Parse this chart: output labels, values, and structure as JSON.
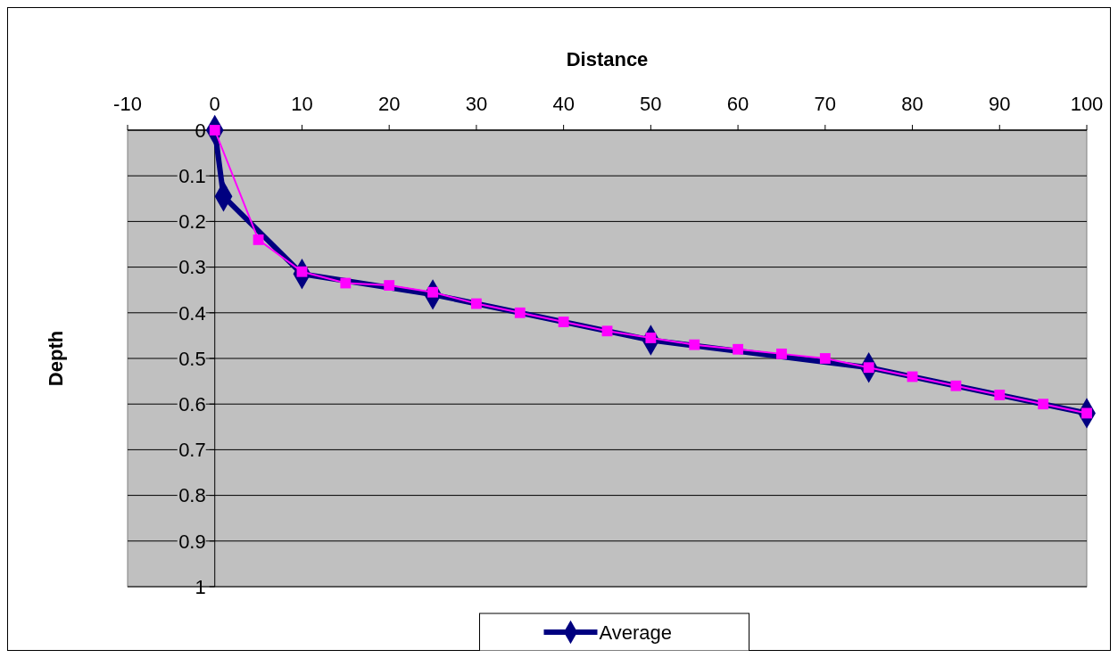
{
  "chart_data": {
    "type": "line",
    "xlabel": "Distance",
    "ylabel": "Depth",
    "xlim": [
      -10,
      100
    ],
    "xticks": [
      -10,
      0,
      10,
      20,
      30,
      40,
      50,
      60,
      70,
      80,
      90,
      100
    ],
    "ylim": [
      1,
      0
    ],
    "yticks": [
      0,
      0.1,
      0.2,
      0.3,
      0.4,
      0.5,
      0.6,
      0.7,
      0.8,
      0.9,
      1
    ],
    "grid": "y",
    "legend": "bottom",
    "series": [
      {
        "name": "Average",
        "color": "#000080",
        "marker": "diamond",
        "x": [
          0,
          1,
          10,
          25,
          50,
          75,
          100
        ],
        "values": [
          0,
          0.145,
          0.315,
          0.36,
          0.46,
          0.52,
          0.62
        ]
      },
      {
        "color": "#ff00ff",
        "marker": "square",
        "x": [
          0,
          5,
          10,
          15,
          20,
          25,
          30,
          35,
          40,
          45,
          50,
          55,
          60,
          65,
          70,
          75,
          80,
          85,
          90,
          95,
          100
        ],
        "values": [
          0,
          0.24,
          0.31,
          0.335,
          0.34,
          0.355,
          0.38,
          0.4,
          0.42,
          0.44,
          0.455,
          0.47,
          0.48,
          0.49,
          0.5,
          0.52,
          0.54,
          0.56,
          0.58,
          0.6,
          0.62
        ]
      }
    ]
  }
}
